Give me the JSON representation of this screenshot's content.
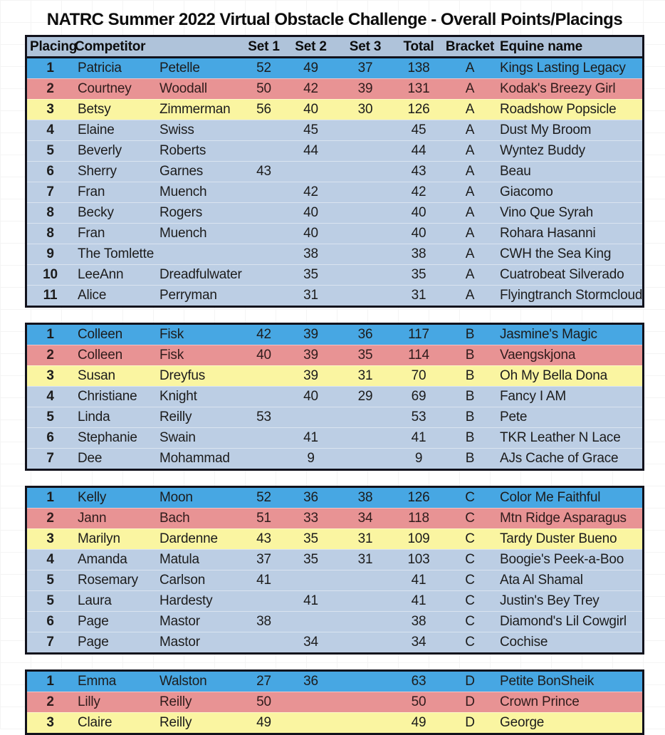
{
  "title": "NATRC Summer 2022 Virtual Obstacle Challenge - Overall Points/Placings",
  "columns": {
    "placing": "Placing",
    "competitor": "Competitor",
    "set1": "Set 1",
    "set2": "Set 2",
    "set3": "Set 3",
    "total": "Total",
    "bracket": "Bracket",
    "equine": "Equine name"
  },
  "colors": {
    "first_place_row": "#47a7e3",
    "second_place_row": "#e89394",
    "third_place_row": "#faf5a1",
    "default_row": "#bccee4",
    "header_row": "#afc3da",
    "table_border": "#12121c"
  },
  "sections": [
    {
      "bracket": "A",
      "rows": [
        {
          "placing": "1",
          "first": "Patricia",
          "last": "Petelle",
          "set1": "52",
          "set2": "49",
          "set3": "37",
          "total": "138",
          "bracket": "A",
          "equine": "Kings Lasting Legacy",
          "rank": "first"
        },
        {
          "placing": "2",
          "first": "Courtney",
          "last": "Woodall",
          "set1": "50",
          "set2": "42",
          "set3": "39",
          "total": "131",
          "bracket": "A",
          "equine": "Kodak's Breezy Girl",
          "rank": "second"
        },
        {
          "placing": "3",
          "first": "Betsy",
          "last": "Zimmerman",
          "set1": "56",
          "set2": "40",
          "set3": "30",
          "total": "126",
          "bracket": "A",
          "equine": "Roadshow Popsicle",
          "rank": "third"
        },
        {
          "placing": "4",
          "first": "Elaine",
          "last": "Swiss",
          "set1": "",
          "set2": "45",
          "set3": "",
          "total": "45",
          "bracket": "A",
          "equine": "Dust My Broom",
          "rank": "none"
        },
        {
          "placing": "5",
          "first": "Beverly",
          "last": "Roberts",
          "set1": "",
          "set2": "44",
          "set3": "",
          "total": "44",
          "bracket": "A",
          "equine": "Wyntez Buddy",
          "rank": "none"
        },
        {
          "placing": "6",
          "first": "Sherry",
          "last": "Garnes",
          "set1": "43",
          "set2": "",
          "set3": "",
          "total": "43",
          "bracket": "A",
          "equine": "Beau",
          "rank": "none"
        },
        {
          "placing": "7",
          "first": "Fran",
          "last": "Muench",
          "set1": "",
          "set2": "42",
          "set3": "",
          "total": "42",
          "bracket": "A",
          "equine": "Giacomo",
          "rank": "none"
        },
        {
          "placing": "8",
          "first": "Becky",
          "last": "Rogers",
          "set1": "",
          "set2": "40",
          "set3": "",
          "total": "40",
          "bracket": "A",
          "equine": "Vino Que Syrah",
          "rank": "none"
        },
        {
          "placing": "8",
          "first": "Fran",
          "last": "Muench",
          "set1": "",
          "set2": "40",
          "set3": "",
          "total": "40",
          "bracket": "A",
          "equine": "Rohara Hasanni",
          "rank": "none"
        },
        {
          "placing": "9",
          "first": "The Tomlette",
          "last": "",
          "set1": "",
          "set2": "38",
          "set3": "",
          "total": "38",
          "bracket": "A",
          "equine": "CWH the Sea King",
          "rank": "none"
        },
        {
          "placing": "10",
          "first": "LeeAnn",
          "last": "Dreadfulwater",
          "set1": "",
          "set2": "35",
          "set3": "",
          "total": "35",
          "bracket": "A",
          "equine": "Cuatrobeat Silverado",
          "rank": "none"
        },
        {
          "placing": "11",
          "first": "Alice",
          "last": "Perryman",
          "set1": "",
          "set2": "31",
          "set3": "",
          "total": "31",
          "bracket": "A",
          "equine": "Flyingtranch Stormcloud",
          "rank": "none"
        }
      ]
    },
    {
      "bracket": "B",
      "rows": [
        {
          "placing": "1",
          "first": "Colleen",
          "last": "Fisk",
          "set1": "42",
          "set2": "39",
          "set3": "36",
          "total": "117",
          "bracket": "B",
          "equine": "Jasmine's Magic",
          "rank": "first"
        },
        {
          "placing": "2",
          "first": "Colleen",
          "last": "Fisk",
          "set1": "40",
          "set2": "39",
          "set3": "35",
          "total": "114",
          "bracket": "B",
          "equine": "Vaengskjona",
          "rank": "second"
        },
        {
          "placing": "3",
          "first": "Susan",
          "last": "Dreyfus",
          "set1": "",
          "set2": "39",
          "set3": "31",
          "total": "70",
          "bracket": "B",
          "equine": "Oh My Bella Dona",
          "rank": "third"
        },
        {
          "placing": "4",
          "first": "Christiane",
          "last": "Knight",
          "set1": "",
          "set2": "40",
          "set3": "29",
          "total": "69",
          "bracket": "B",
          "equine": "Fancy I AM",
          "rank": "none"
        },
        {
          "placing": "5",
          "first": "Linda",
          "last": "Reilly",
          "set1": "53",
          "set2": "",
          "set3": "",
          "total": "53",
          "bracket": "B",
          "equine": "Pete",
          "rank": "none"
        },
        {
          "placing": "6",
          "first": "Stephanie",
          "last": "Swain",
          "set1": "",
          "set2": "41",
          "set3": "",
          "total": "41",
          "bracket": "B",
          "equine": "TKR Leather N Lace",
          "rank": "none"
        },
        {
          "placing": "7",
          "first": "Dee",
          "last": "Mohammad",
          "set1": "",
          "set2": "9",
          "set3": "",
          "total": "9",
          "bracket": "B",
          "equine": "AJs Cache of Grace",
          "rank": "none"
        }
      ]
    },
    {
      "bracket": "C",
      "rows": [
        {
          "placing": "1",
          "first": "Kelly",
          "last": "Moon",
          "set1": "52",
          "set2": "36",
          "set3": "38",
          "total": "126",
          "bracket": "C",
          "equine": "Color Me Faithful",
          "rank": "first"
        },
        {
          "placing": "2",
          "first": "Jann",
          "last": "Bach",
          "set1": "51",
          "set2": "33",
          "set3": "34",
          "total": "118",
          "bracket": "C",
          "equine": "Mtn Ridge Asparagus",
          "rank": "second"
        },
        {
          "placing": "3",
          "first": "Marilyn",
          "last": "Dardenne",
          "set1": "43",
          "set2": "35",
          "set3": "31",
          "total": "109",
          "bracket": "C",
          "equine": "Tardy Duster Bueno",
          "rank": "third"
        },
        {
          "placing": "4",
          "first": "Amanda",
          "last": "Matula",
          "set1": "37",
          "set2": "35",
          "set3": "31",
          "total": "103",
          "bracket": "C",
          "equine": "Boogie's Peek-a-Boo",
          "rank": "none"
        },
        {
          "placing": "5",
          "first": "Rosemary",
          "last": "Carlson",
          "set1": "41",
          "set2": "",
          "set3": "",
          "total": "41",
          "bracket": "C",
          "equine": "Ata Al Shamal",
          "rank": "none"
        },
        {
          "placing": "5",
          "first": "Laura",
          "last": "Hardesty",
          "set1": "",
          "set2": "41",
          "set3": "",
          "total": "41",
          "bracket": "C",
          "equine": "Justin's Bey Trey",
          "rank": "none"
        },
        {
          "placing": "6",
          "first": "Page",
          "last": "Mastor",
          "set1": "38",
          "set2": "",
          "set3": "",
          "total": "38",
          "bracket": "C",
          "equine": "Diamond's Lil Cowgirl",
          "rank": "none"
        },
        {
          "placing": "7",
          "first": "Page",
          "last": "Mastor",
          "set1": "",
          "set2": "34",
          "set3": "",
          "total": "34",
          "bracket": "C",
          "equine": "Cochise",
          "rank": "none"
        }
      ]
    },
    {
      "bracket": "D",
      "rows": [
        {
          "placing": "1",
          "first": "Emma",
          "last": "Walston",
          "set1": "27",
          "set2": "36",
          "set3": "",
          "total": "63",
          "bracket": "D",
          "equine": "Petite BonSheik",
          "rank": "first"
        },
        {
          "placing": "2",
          "first": "Lilly",
          "last": "Reilly",
          "set1": "50",
          "set2": "",
          "set3": "",
          "total": "50",
          "bracket": "D",
          "equine": "Crown Prince",
          "rank": "second"
        },
        {
          "placing": "3",
          "first": "Claire",
          "last": "Reilly",
          "set1": "49",
          "set2": "",
          "set3": "",
          "total": "49",
          "bracket": "D",
          "equine": "George",
          "rank": "none",
          "highlight": "third"
        }
      ]
    }
  ]
}
